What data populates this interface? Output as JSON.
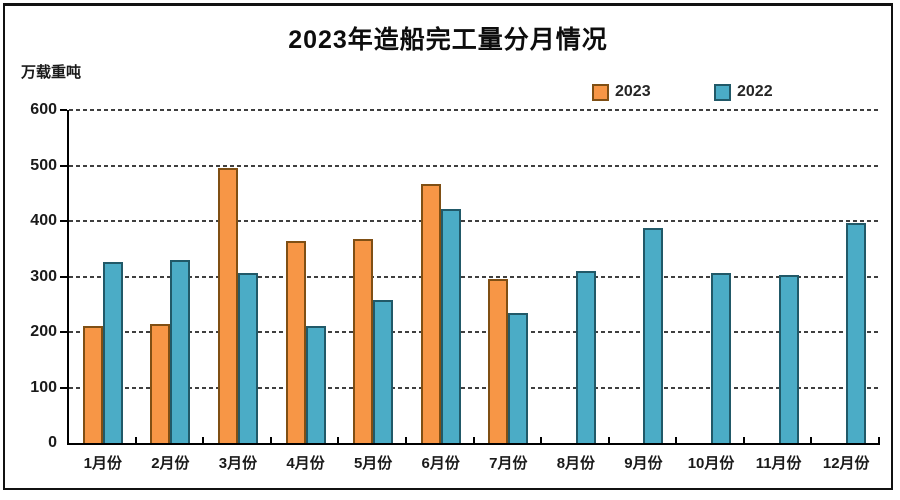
{
  "title": "2023年造船完工量分月情况",
  "unit_label": "万载重吨",
  "legend": {
    "items": [
      {
        "label": "2023",
        "color": "#F79646",
        "border_color": "#7F4F14"
      },
      {
        "label": "2022",
        "color": "#4BACC6",
        "border_color": "#215968"
      }
    ]
  },
  "chart_data": {
    "type": "bar",
    "title": "2023年造船完工量分月情况",
    "ylabel": "万载重吨",
    "ylim": [
      0,
      600
    ],
    "yticks": [
      0,
      100,
      200,
      300,
      400,
      500,
      600
    ],
    "grid": "horizontal-dashed",
    "legend_position": "top",
    "categories": [
      "1月份",
      "2月份",
      "3月份",
      "4月份",
      "5月份",
      "6月份",
      "7月份",
      "8月份",
      "9月份",
      "10月份",
      "11月份",
      "12月份"
    ],
    "series": [
      {
        "name": "2023",
        "color": "#F79646",
        "border_color": "#7F4F14",
        "values": [
          211,
          214,
          495,
          364,
          368,
          467,
          296,
          null,
          null,
          null,
          null,
          null
        ]
      },
      {
        "name": "2022",
        "color": "#4BACC6",
        "border_color": "#215968",
        "values": [
          326,
          329,
          307,
          211,
          258,
          422,
          235,
          310,
          387,
          307,
          302,
          396
        ]
      }
    ]
  }
}
